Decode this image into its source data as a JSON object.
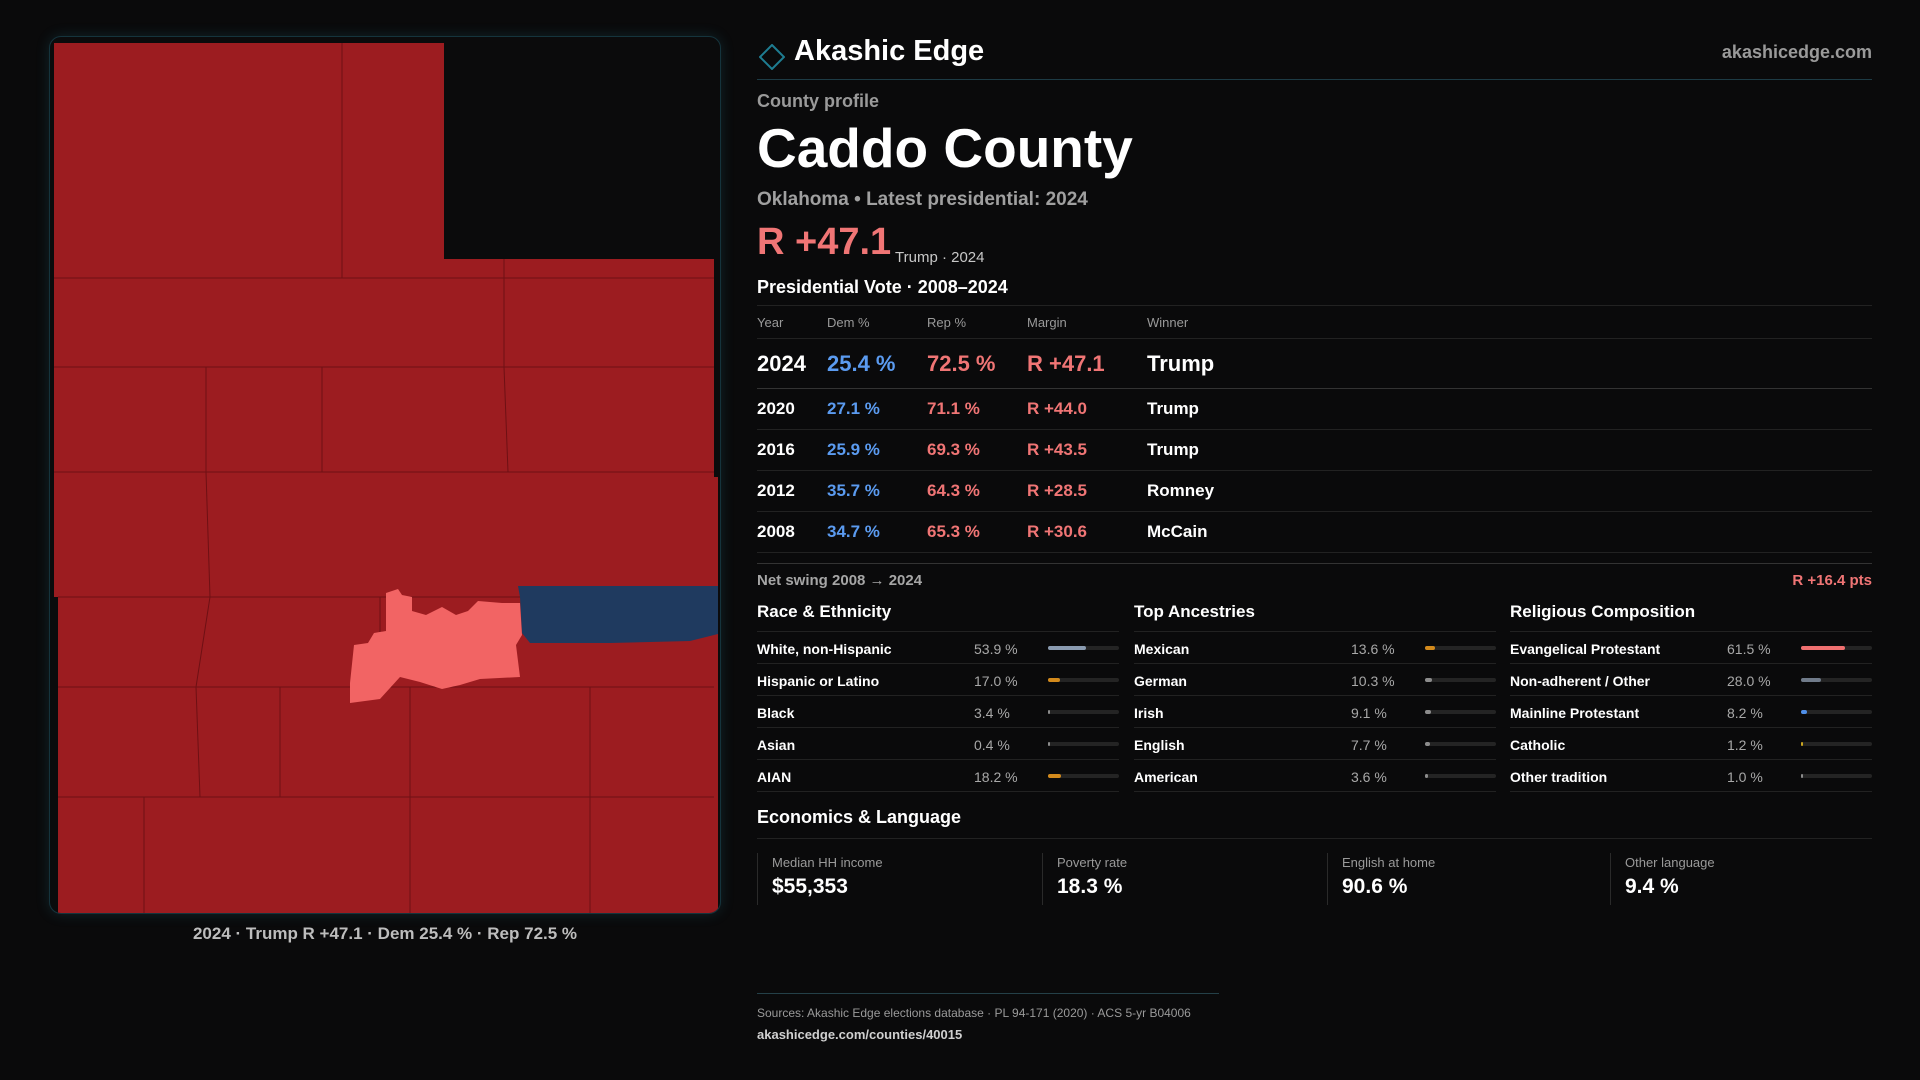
{
  "brand": {
    "name": "Akashic Edge",
    "site": "akashicedge.com"
  },
  "colors": {
    "rep": "#f07575",
    "dem": "#5b9bf0",
    "map_rep_strong": "#9c1c20",
    "map_rep_light": "#f26464",
    "map_dem": "#1f3a5f",
    "bar_white": "#8a9bb0",
    "bar_orange": "#d38a1c",
    "bar_grey": "#8c8c8c",
    "bar_blue": "#4f8fe8",
    "bar_red": "#f07070",
    "bar_slate": "#707b8a",
    "bar_yellow": "#c9a520"
  },
  "map": {
    "caption": "2024 · Trump R +47.1 · Dem 25.4 % · Rep 72.5 %"
  },
  "profile": {
    "section_label": "County profile",
    "title": "Caddo County",
    "subtitle": "Oklahoma • Latest presidential: 2024",
    "headline_margin": "R +47.1",
    "headline_note": "Trump · 2024"
  },
  "vote": {
    "heading": "Presidential Vote · 2008–2024",
    "columns": {
      "year": "Year",
      "dem": "Dem %",
      "rep": "Rep %",
      "margin": "Margin",
      "winner": "Winner"
    },
    "rows": [
      {
        "year": "2024",
        "dem": "25.4 %",
        "rep": "72.5 %",
        "margin": "R +47.1",
        "winner": "Trump"
      },
      {
        "year": "2020",
        "dem": "27.1 %",
        "rep": "71.1 %",
        "margin": "R +44.0",
        "winner": "Trump"
      },
      {
        "year": "2016",
        "dem": "25.9 %",
        "rep": "69.3 %",
        "margin": "R +43.5",
        "winner": "Trump"
      },
      {
        "year": "2012",
        "dem": "35.7 %",
        "rep": "64.3 %",
        "margin": "R +28.5",
        "winner": "Romney"
      },
      {
        "year": "2008",
        "dem": "34.7 %",
        "rep": "65.3 %",
        "margin": "R +30.6",
        "winner": "McCain"
      }
    ],
    "swing_label": "Net swing 2008 → 2024",
    "swing_value": "R +16.4 pts"
  },
  "race": {
    "title": "Race & Ethnicity",
    "items": [
      {
        "label": "White, non-Hispanic",
        "value": "53.9 %",
        "pct": 53.9,
        "color": "#8a9bb0"
      },
      {
        "label": "Hispanic or Latino",
        "value": "17.0 %",
        "pct": 17.0,
        "color": "#d38a1c"
      },
      {
        "label": "Black",
        "value": "3.4 %",
        "pct": 3.4,
        "color": "#8c8c8c"
      },
      {
        "label": "Asian",
        "value": "0.4 %",
        "pct": 0.4,
        "color": "#8c8c8c"
      },
      {
        "label": "AIAN",
        "value": "18.2 %",
        "pct": 18.2,
        "color": "#d38a1c"
      }
    ]
  },
  "ancestry": {
    "title": "Top Ancestries",
    "items": [
      {
        "label": "Mexican",
        "value": "13.6 %",
        "pct": 13.6,
        "color": "#d38a1c"
      },
      {
        "label": "German",
        "value": "10.3 %",
        "pct": 10.3,
        "color": "#8c8c8c"
      },
      {
        "label": "Irish",
        "value": "9.1 %",
        "pct": 9.1,
        "color": "#8c8c8c"
      },
      {
        "label": "English",
        "value": "7.7 %",
        "pct": 7.7,
        "color": "#8c8c8c"
      },
      {
        "label": "American",
        "value": "3.6 %",
        "pct": 3.6,
        "color": "#8c8c8c"
      }
    ]
  },
  "religion": {
    "title": "Religious Composition",
    "items": [
      {
        "label": "Evangelical Protestant",
        "value": "61.5 %",
        "pct": 61.5,
        "color": "#f07070"
      },
      {
        "label": "Non-adherent / Other",
        "value": "28.0 %",
        "pct": 28.0,
        "color": "#707b8a"
      },
      {
        "label": "Mainline Protestant",
        "value": "8.2 %",
        "pct": 8.2,
        "color": "#4f8fe8"
      },
      {
        "label": "Catholic",
        "value": "1.2 %",
        "pct": 1.2,
        "color": "#c9a520"
      },
      {
        "label": "Other tradition",
        "value": "1.0 %",
        "pct": 1.0,
        "color": "#8c8c8c"
      }
    ]
  },
  "economics": {
    "title": "Economics & Language",
    "cards": [
      {
        "label": "Median HH income",
        "value": "$55,353"
      },
      {
        "label": "Poverty rate",
        "value": "18.3 %"
      },
      {
        "label": "English at home",
        "value": "90.6 %"
      },
      {
        "label": "Other language",
        "value": "9.4 %"
      }
    ]
  },
  "footer": {
    "sources": "Sources: Akashic Edge elections database · PL 94-171 (2020) · ACS 5-yr B04006",
    "url": "akashicedge.com/counties/40015"
  }
}
